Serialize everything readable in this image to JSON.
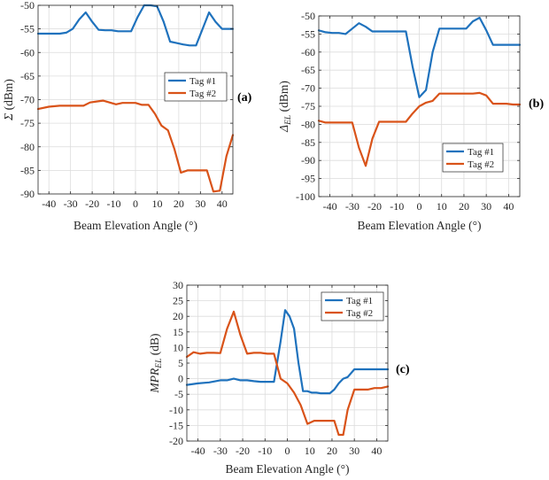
{
  "colors": {
    "tag1": "#1f72bd",
    "tag2": "#d95319",
    "grid": "#dcdcdc",
    "axis": "#262626"
  },
  "chart_data": [
    {
      "type": "line",
      "panel_label": "(a)",
      "ylabel_main": "Σ",
      "ylabel_sub": "",
      "ylabel_unit": " (dBm)",
      "xlabel": "Beam Elevation Angle (°)",
      "xlim": [
        -45,
        45
      ],
      "ylim": [
        -90,
        -50
      ],
      "xticks": [
        -40,
        -30,
        -20,
        -10,
        0,
        10,
        20,
        30,
        40
      ],
      "yticks": [
        -90,
        -85,
        -80,
        -75,
        -70,
        -65,
        -60,
        -55,
        -50
      ],
      "grid": true,
      "legend_position": "center-right",
      "series": [
        {
          "name": "Tag #1",
          "color": "#1f72bd",
          "x": [
            -45,
            -40,
            -35,
            -32,
            -29,
            -26,
            -23,
            -20,
            -17,
            -14,
            -11,
            -8,
            -5,
            -2,
            1,
            4,
            7,
            10,
            13,
            16,
            19,
            22,
            25,
            28,
            31,
            34,
            37,
            40,
            45
          ],
          "y": [
            -56,
            -56,
            -56,
            -55.8,
            -55,
            -53,
            -51.5,
            -53.5,
            -55.2,
            -55.3,
            -55.3,
            -55.5,
            -55.5,
            -55.5,
            -52.5,
            -50,
            -50,
            -50.2,
            -53.5,
            -57.7,
            -58,
            -58.3,
            -58.5,
            -58.5,
            -55,
            -51.5,
            -53.5,
            -55,
            -55
          ]
        },
        {
          "name": "Tag #2",
          "color": "#d95319",
          "x": [
            -45,
            -40,
            -35,
            -30,
            -27,
            -24,
            -21,
            -18,
            -15,
            -12,
            -9,
            -6,
            -3,
            0,
            3,
            6,
            9,
            12,
            15,
            18,
            21,
            24,
            27,
            30,
            33,
            36,
            39,
            42,
            45
          ],
          "y": [
            -72,
            -71.5,
            -71.3,
            -71.3,
            -71.3,
            -71.3,
            -70.6,
            -70.4,
            -70.2,
            -70.6,
            -71,
            -70.7,
            -70.7,
            -70.7,
            -71.1,
            -71.1,
            -73,
            -75.5,
            -76.5,
            -80.5,
            -85.5,
            -85,
            -85,
            -85,
            -85,
            -89.5,
            -89.3,
            -82,
            -77.5
          ]
        }
      ]
    },
    {
      "type": "line",
      "panel_label": "(b)",
      "ylabel_main": "Δ",
      "ylabel_sub": "EL",
      "ylabel_unit": " (dBm)",
      "xlabel": "Beam Elevation Angle (°)",
      "xlim": [
        -45,
        45
      ],
      "ylim": [
        -100,
        -50
      ],
      "xticks": [
        -40,
        -30,
        -20,
        -10,
        0,
        10,
        20,
        30,
        40
      ],
      "yticks": [
        -100,
        -95,
        -90,
        -85,
        -80,
        -75,
        -70,
        -65,
        -60,
        -55,
        -50
      ],
      "grid": true,
      "legend_position": "lower-right",
      "series": [
        {
          "name": "Tag #1",
          "color": "#1f72bd",
          "x": [
            -45,
            -42,
            -39,
            -36,
            -33,
            -30,
            -27,
            -24,
            -21,
            -18,
            -15,
            -12,
            -9,
            -6,
            -3,
            0,
            3,
            6,
            9,
            12,
            15,
            18,
            21,
            24,
            27,
            30,
            33,
            36,
            39,
            42,
            45
          ],
          "y": [
            -54,
            -54.5,
            -54.7,
            -54.7,
            -55,
            -53.5,
            -52,
            -53,
            -54.3,
            -54.3,
            -54.3,
            -54.3,
            -54.3,
            -54.3,
            -64,
            -72.5,
            -70.5,
            -60,
            -53.5,
            -53.5,
            -53.5,
            -53.5,
            -53.5,
            -51.5,
            -50.5,
            -54,
            -58,
            -58,
            -58,
            -58,
            -58
          ]
        },
        {
          "name": "Tag #2",
          "color": "#d95319",
          "x": [
            -45,
            -42,
            -39,
            -36,
            -33,
            -30,
            -27,
            -24,
            -21,
            -18,
            -15,
            -12,
            -9,
            -6,
            -3,
            0,
            3,
            6,
            9,
            12,
            15,
            18,
            21,
            24,
            27,
            30,
            33,
            36,
            39,
            42,
            45
          ],
          "y": [
            -79,
            -79.5,
            -79.5,
            -79.5,
            -79.5,
            -79.5,
            -86.5,
            -91.5,
            -84,
            -79.3,
            -79.3,
            -79.3,
            -79.3,
            -79.3,
            -77,
            -75,
            -74,
            -73.5,
            -71.5,
            -71.5,
            -71.5,
            -71.5,
            -71.5,
            -71.5,
            -71.3,
            -72,
            -74.3,
            -74.3,
            -74.3,
            -74.5,
            -74.5
          ]
        }
      ]
    },
    {
      "type": "line",
      "panel_label": "(c)",
      "ylabel_main": "MPR",
      "ylabel_sub": "EL",
      "ylabel_unit": " (dB)",
      "xlabel": "Beam Elevation Angle (°)",
      "xlim": [
        -45,
        45
      ],
      "ylim": [
        -20,
        30
      ],
      "xticks": [
        -40,
        -30,
        -20,
        -10,
        0,
        10,
        20,
        30,
        40
      ],
      "yticks": [
        -20,
        -15,
        -10,
        -5,
        0,
        5,
        10,
        15,
        20,
        25,
        30
      ],
      "grid": true,
      "legend_position": "top-right",
      "series": [
        {
          "name": "Tag #1",
          "color": "#1f72bd",
          "x": [
            -45,
            -40,
            -35,
            -30,
            -27,
            -24,
            -21,
            -18,
            -15,
            -12,
            -9,
            -6,
            -3,
            -1,
            1,
            3,
            5,
            7,
            9,
            11,
            13,
            15,
            17,
            19,
            21,
            23,
            25,
            27,
            30,
            33,
            36,
            39,
            42,
            45
          ],
          "y": [
            -2,
            -1.5,
            -1.2,
            -0.5,
            -0.5,
            0,
            -0.5,
            -0.5,
            -0.8,
            -1,
            -1,
            -1,
            12,
            22,
            20,
            16,
            5,
            -4,
            -4,
            -4.5,
            -4.5,
            -4.7,
            -4.7,
            -4.7,
            -3.5,
            -1.5,
            0,
            0.5,
            3,
            3,
            3,
            3,
            3,
            3
          ]
        },
        {
          "name": "Tag #2",
          "color": "#d95319",
          "x": [
            -45,
            -42,
            -39,
            -36,
            -33,
            -30,
            -27,
            -24,
            -21,
            -18,
            -15,
            -12,
            -9,
            -6,
            -3,
            0,
            3,
            6,
            9,
            12,
            15,
            18,
            21,
            23,
            25,
            27,
            30,
            33,
            36,
            39,
            42,
            45
          ],
          "y": [
            7,
            8.5,
            8,
            8.3,
            8.3,
            8.2,
            16,
            21.5,
            14,
            8,
            8.3,
            8.3,
            8,
            8,
            0,
            -1.5,
            -4.5,
            -8.5,
            -14.5,
            -13.5,
            -13.5,
            -13.5,
            -13.5,
            -18,
            -18,
            -10,
            -3.5,
            -3.5,
            -3.5,
            -3,
            -3,
            -2.5
          ]
        }
      ]
    }
  ]
}
